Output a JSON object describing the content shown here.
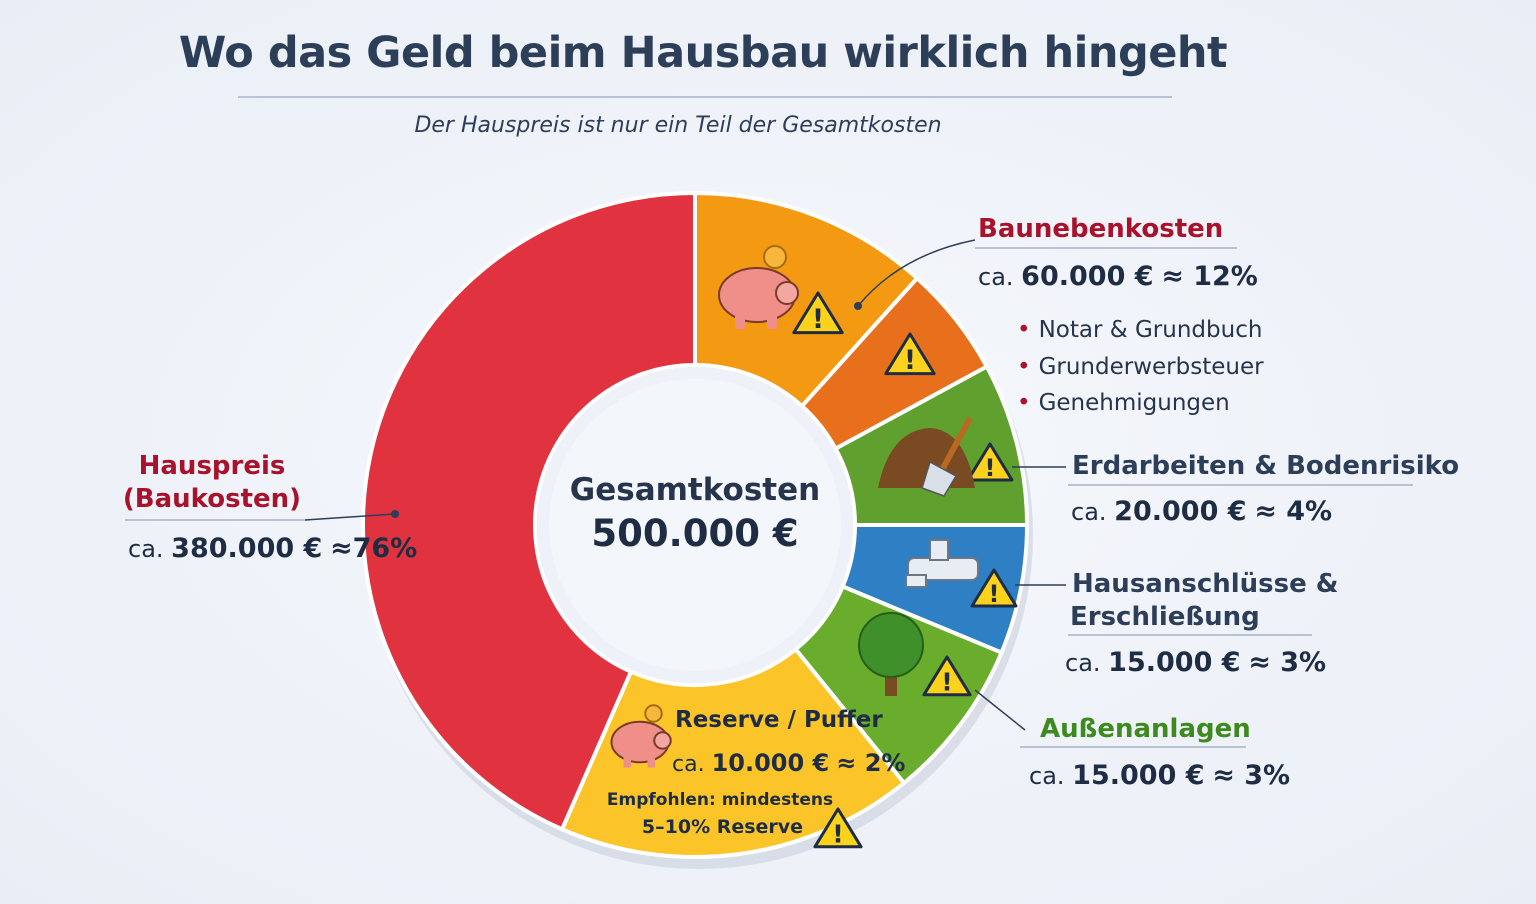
{
  "chart_data": {
    "type": "pie",
    "donut": true,
    "title": "Wo das Geld beim Hausbau wirklich hingeht",
    "subtitle": "Der Hauspreis ist nur ein Teil der Gesamtkosten",
    "center": {
      "label": "Gesamtkosten",
      "value": "500.000 €"
    },
    "total": 500000,
    "slices": [
      {
        "name": "Baunebenkosten",
        "value": 60000,
        "percent": 12,
        "value_text": "60.000 €",
        "approx": "≈ 12%",
        "color": "#f39a12",
        "color2": "#e8701d",
        "icon": "piggy-bank-icon",
        "bullets": [
          "Notar & Grundbuch",
          "Grunderwerbsteuer",
          "Genehmigungen"
        ]
      },
      {
        "name": "Erdarbeiten & Bodenrisiko",
        "value": 20000,
        "percent": 4,
        "value_text": "20.000 €",
        "approx": "≈ 4%",
        "color": "#5fa02e",
        "icon": "shovel-dirt-icon"
      },
      {
        "name": "Hausanschlüsse & Erschließung",
        "name_lines": [
          "Hausanschlüsse &",
          "Erschließung"
        ],
        "value": 15000,
        "percent": 3,
        "value_text": "15.000 €",
        "approx": "≈ 3%",
        "color": "#2f7fc4",
        "icon": "water-tap-icon"
      },
      {
        "name": "Außenanlagen",
        "value": 15000,
        "percent": 3,
        "value_text": "15.000 €",
        "approx": "≈ 3%",
        "color": "#6aac2c",
        "icon": "tree-icon"
      },
      {
        "name": "Reserve / Puffer",
        "value": 10000,
        "percent": 2,
        "value_text": "10.000 €",
        "approx": "≈ 2%",
        "color": "#fbc52a",
        "icon": "piggy-bank-icon",
        "note": [
          "Empfohlen: mindestens",
          "5–10% Reserve"
        ]
      },
      {
        "name": "Hauspreis (Baukosten)",
        "name_lines": [
          "Hauspreis",
          "(Baukosten)"
        ],
        "value": 380000,
        "percent": 76,
        "value_text": "380.000 €",
        "approx": "≈76%",
        "color": "#e0323f"
      }
    ],
    "prefix": "ca.",
    "warning_icon": "warning-triangle-icon"
  }
}
